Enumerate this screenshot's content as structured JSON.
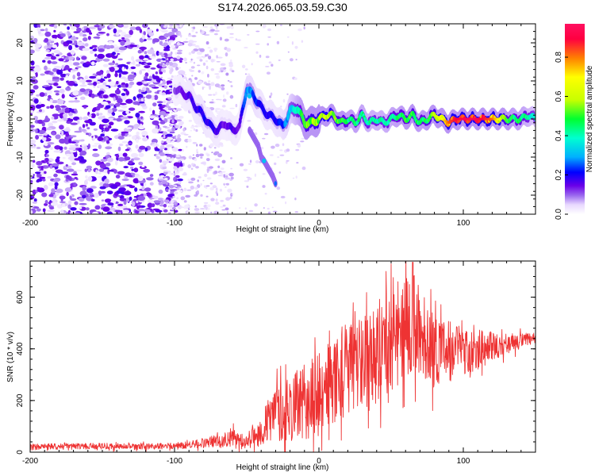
{
  "title": "S174.2026.065.03.59.C30",
  "chart_data": [
    {
      "type": "heatmap",
      "xlabel": "Height of straight line (km)",
      "ylabel": "Frequency (Hz)",
      "xlim": [
        -200,
        150
      ],
      "ylim": [
        -25,
        25
      ],
      "x_ticks": [
        -200,
        -100,
        0,
        100
      ],
      "y_ticks": [
        -20,
        -10,
        0,
        10,
        20
      ],
      "colorbar": {
        "label": "Normalized spectral amplitude",
        "range": [
          0,
          0.97
        ],
        "ticks": [
          0.0,
          0.2,
          0.4,
          0.6,
          0.8
        ],
        "colormap": [
          "#ffffff",
          "#e8d8ff",
          "#9966ee",
          "#6a00e8",
          "#0000ff",
          "#00b0ff",
          "#00ffd0",
          "#00ff30",
          "#c8ff00",
          "#ffff00",
          "#ff8000",
          "#ff0040",
          "#ff1060"
        ]
      },
      "ridge": {
        "description_x": [
          -100,
          -95,
          -90,
          -85,
          -80,
          -75,
          -70,
          -65,
          -60,
          -55,
          -50,
          -45,
          -40,
          -35,
          -30,
          -25,
          -20,
          -15,
          -10,
          -5,
          0,
          5,
          10,
          15,
          20,
          25,
          30,
          35,
          40,
          45,
          50,
          55,
          60,
          65,
          70,
          75,
          80,
          85,
          90,
          95,
          100,
          105,
          110,
          115,
          120,
          125,
          130,
          135,
          140,
          145,
          150
        ],
        "frequency_hz": [
          8,
          7,
          6,
          3,
          1,
          -2,
          -3,
          -1,
          -3,
          -2,
          8,
          6,
          3,
          1,
          0,
          -2,
          2,
          3,
          -1,
          -1,
          0,
          1,
          1,
          -1,
          0,
          -1,
          1,
          -1,
          0,
          -1,
          0,
          1,
          0,
          1,
          -1,
          0,
          1,
          0,
          -1,
          0,
          0,
          0,
          0,
          0,
          0,
          0,
          0,
          0,
          0,
          1,
          0
        ],
        "amplitude": [
          0.12,
          0.15,
          0.18,
          0.2,
          0.22,
          0.2,
          0.18,
          0.15,
          0.18,
          0.16,
          0.3,
          0.28,
          0.22,
          0.2,
          0.22,
          0.25,
          0.35,
          0.45,
          0.55,
          0.6,
          0.62,
          0.7,
          0.6,
          0.55,
          0.5,
          0.5,
          0.48,
          0.45,
          0.45,
          0.45,
          0.48,
          0.5,
          0.52,
          0.55,
          0.5,
          0.52,
          0.6,
          0.7,
          0.85,
          0.92,
          0.95,
          0.97,
          0.95,
          0.9,
          0.85,
          0.7,
          0.55,
          0.5,
          0.5,
          0.45,
          0.4
        ]
      },
      "secondary_ridge": {
        "x": [
          -48,
          -45,
          -42,
          -40,
          -38,
          -35,
          -32,
          -30
        ],
        "frequency_hz": [
          -3,
          -5,
          -7,
          -10,
          -11,
          -13,
          -15,
          -17
        ]
      }
    },
    {
      "type": "line",
      "xlabel": "Height of straight line (km)",
      "ylabel": "SNR (10 * v/v)",
      "xlim": [
        -200,
        150
      ],
      "ylim": [
        0,
        740
      ],
      "x_ticks": [
        -200,
        -100,
        0,
        100
      ],
      "y_ticks": [
        0,
        200,
        400,
        600
      ],
      "color": "#ee3333",
      "series": [
        {
          "name": "SNR",
          "envelope_x": [
            -200,
            -175,
            -150,
            -125,
            -100,
            -90,
            -80,
            -70,
            -60,
            -50,
            -45,
            -40,
            -35,
            -30,
            -20,
            -10,
            0,
            10,
            20,
            30,
            40,
            50,
            60,
            65,
            70,
            80,
            90,
            100,
            110,
            120,
            130,
            140,
            150
          ],
          "envelope_mean": [
            20,
            22,
            24,
            20,
            25,
            28,
            35,
            45,
            55,
            40,
            60,
            80,
            120,
            150,
            170,
            190,
            230,
            280,
            330,
            360,
            390,
            430,
            470,
            520,
            460,
            400,
            390,
            395,
            400,
            410,
            420,
            430,
            440
          ],
          "envelope_spread": [
            12,
            12,
            12,
            12,
            12,
            15,
            20,
            25,
            35,
            25,
            40,
            60,
            90,
            110,
            130,
            150,
            160,
            170,
            180,
            190,
            200,
            200,
            200,
            200,
            180,
            150,
            120,
            100,
            80,
            60,
            40,
            30,
            25
          ],
          "peak": {
            "x": 65,
            "y": 735
          }
        }
      ]
    }
  ]
}
